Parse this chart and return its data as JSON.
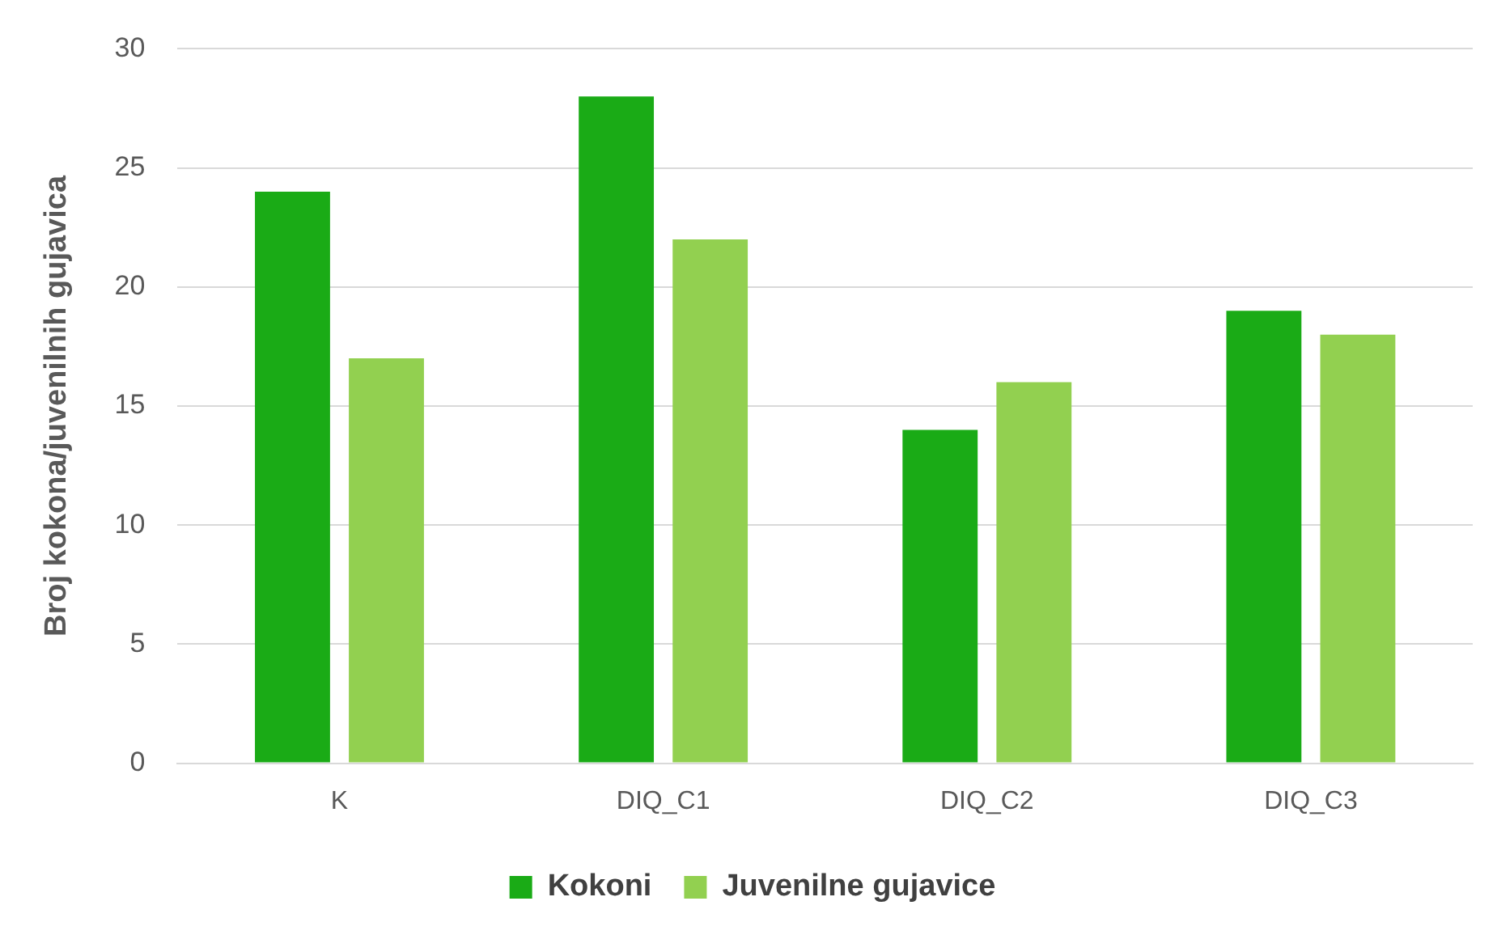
{
  "chart_data": {
    "type": "bar",
    "ylabel": "Broj kokona/juvenilnih gujavica",
    "categories": [
      "K",
      "DIQ_C1",
      "DIQ_C2",
      "DIQ_C3"
    ],
    "series": [
      {
        "name": "Kokoni",
        "color": "#1aab16",
        "values": [
          24,
          28,
          14,
          19
        ]
      },
      {
        "name": "Juvenilne gujavice",
        "color": "#92d050",
        "values": [
          17,
          22,
          16,
          18
        ]
      }
    ],
    "ylim": [
      0,
      30
    ],
    "yticks": [
      0,
      5,
      10,
      15,
      20,
      25,
      30
    ],
    "grid": "y",
    "legend": "bottom"
  }
}
